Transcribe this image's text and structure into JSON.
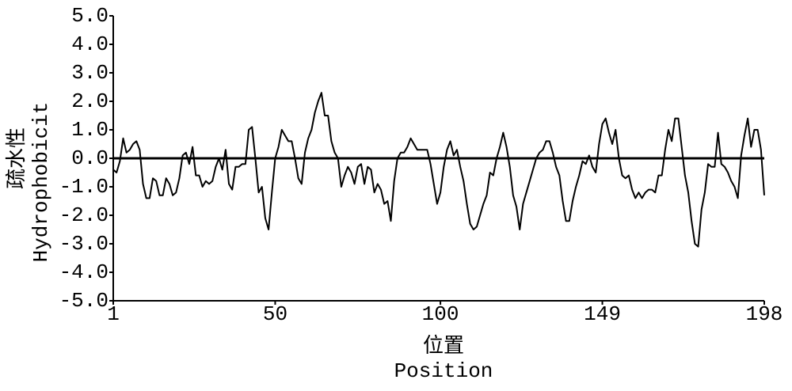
{
  "chart_data": {
    "type": "line",
    "ylabel": [
      "疏水性",
      "Hydrophobicit"
    ],
    "xlabel": [
      "位置",
      "Position"
    ],
    "color": "#000000",
    "hline": 0,
    "xlim": [
      1,
      198
    ],
    "xticks": [
      1,
      50,
      100,
      149,
      198
    ],
    "ylim": [
      -5,
      5
    ],
    "yticks": [
      {
        "value": 5,
        "label": "5.0"
      },
      {
        "value": 4,
        "label": "4.0"
      },
      {
        "value": 3,
        "label": "3.0"
      },
      {
        "value": 2,
        "label": "2.0"
      },
      {
        "value": 1,
        "label": "1.0"
      },
      {
        "value": 0,
        "label": "0.0"
      },
      {
        "value": -1,
        "label": "-1.0"
      },
      {
        "value": -2,
        "label": "-2.0"
      },
      {
        "value": -3,
        "label": "-3.0"
      },
      {
        "value": -4,
        "label": "-4.0"
      },
      {
        "value": -5,
        "label": "-5.0"
      }
    ],
    "x": [
      1,
      2,
      3,
      4,
      5,
      6,
      7,
      8,
      9,
      10,
      11,
      12,
      13,
      14,
      15,
      16,
      17,
      18,
      19,
      20,
      21,
      22,
      23,
      24,
      25,
      26,
      27,
      28,
      29,
      30,
      31,
      32,
      33,
      34,
      35,
      36,
      37,
      38,
      39,
      40,
      41,
      42,
      43,
      44,
      45,
      46,
      47,
      48,
      49,
      50,
      51,
      52,
      53,
      54,
      55,
      56,
      57,
      58,
      59,
      60,
      61,
      62,
      63,
      64,
      65,
      66,
      67,
      68,
      69,
      70,
      71,
      72,
      73,
      74,
      75,
      76,
      77,
      78,
      79,
      80,
      81,
      82,
      83,
      84,
      85,
      86,
      87,
      88,
      89,
      90,
      91,
      92,
      93,
      94,
      95,
      96,
      97,
      98,
      99,
      100,
      101,
      102,
      103,
      104,
      105,
      106,
      107,
      108,
      109,
      110,
      111,
      112,
      113,
      114,
      115,
      116,
      117,
      118,
      119,
      120,
      121,
      122,
      123,
      124,
      125,
      126,
      127,
      128,
      129,
      130,
      131,
      132,
      133,
      134,
      135,
      136,
      137,
      138,
      139,
      140,
      141,
      142,
      143,
      144,
      145,
      146,
      147,
      148,
      149,
      150,
      151,
      152,
      153,
      154,
      155,
      156,
      157,
      158,
      159,
      160,
      161,
      162,
      163,
      164,
      165,
      166,
      167,
      168,
      169,
      170,
      171,
      172,
      173,
      174,
      175,
      176,
      177,
      178,
      179,
      180,
      181,
      182,
      183,
      184,
      185,
      186,
      187,
      188,
      189,
      190,
      191,
      192,
      193,
      194,
      195,
      196,
      197,
      198
    ],
    "values": [
      -0.4,
      -0.5,
      -0.1,
      0.7,
      0.2,
      0.3,
      0.5,
      0.6,
      0.3,
      -0.9,
      -1.4,
      -1.4,
      -0.7,
      -0.8,
      -1.3,
      -1.3,
      -0.7,
      -0.9,
      -1.3,
      -1.2,
      -0.7,
      0.1,
      0.2,
      -0.2,
      0.4,
      -0.6,
      -0.6,
      -1.0,
      -0.8,
      -0.9,
      -0.8,
      -0.3,
      0.0,
      -0.4,
      0.3,
      -0.9,
      -1.1,
      -0.3,
      -0.3,
      -0.2,
      -0.2,
      1.0,
      1.1,
      0.0,
      -1.2,
      -1.0,
      -2.1,
      -2.5,
      -1.2,
      0.0,
      0.4,
      1.0,
      0.8,
      0.6,
      0.6,
      0.0,
      -0.7,
      -0.9,
      0.2,
      0.7,
      1.0,
      1.6,
      2.0,
      2.3,
      1.5,
      1.5,
      0.6,
      0.2,
      0.0,
      -1.0,
      -0.6,
      -0.3,
      -0.5,
      -0.9,
      -0.3,
      -0.2,
      -0.9,
      -0.3,
      -0.4,
      -1.2,
      -0.9,
      -1.1,
      -1.6,
      -1.5,
      -2.2,
      -0.8,
      0.0,
      0.2,
      0.2,
      0.4,
      0.7,
      0.5,
      0.3,
      0.3,
      0.3,
      0.3,
      -0.2,
      -0.9,
      -1.6,
      -1.2,
      -0.3,
      0.3,
      0.6,
      0.1,
      0.3,
      -0.3,
      -0.8,
      -1.6,
      -2.3,
      -2.5,
      -2.4,
      -2.0,
      -1.6,
      -1.3,
      -0.5,
      -0.6,
      0.0,
      0.4,
      0.9,
      0.4,
      -0.3,
      -1.3,
      -1.7,
      -2.5,
      -1.6,
      -1.2,
      -0.8,
      -0.4,
      0.0,
      0.2,
      0.3,
      0.6,
      0.6,
      0.2,
      -0.3,
      -0.6,
      -1.5,
      -2.2,
      -2.2,
      -1.5,
      -1.0,
      -0.6,
      -0.1,
      -0.2,
      0.1,
      -0.3,
      -0.5,
      0.5,
      1.2,
      1.4,
      0.9,
      0.5,
      1.0,
      0.0,
      -0.6,
      -0.7,
      -0.6,
      -1.1,
      -1.4,
      -1.2,
      -1.4,
      -1.2,
      -1.1,
      -1.1,
      -1.2,
      -0.6,
      -0.6,
      0.3,
      1.0,
      0.6,
      1.4,
      1.4,
      0.4,
      -0.6,
      -1.2,
      -2.2,
      -3.0,
      -3.1,
      -1.8,
      -1.2,
      -0.2,
      -0.3,
      -0.3,
      0.9,
      -0.2,
      -0.3,
      -0.5,
      -0.8,
      -1.0,
      -1.4,
      0.1,
      0.8,
      1.4,
      0.4,
      1.0,
      1.0,
      0.3,
      -1.3
    ]
  }
}
